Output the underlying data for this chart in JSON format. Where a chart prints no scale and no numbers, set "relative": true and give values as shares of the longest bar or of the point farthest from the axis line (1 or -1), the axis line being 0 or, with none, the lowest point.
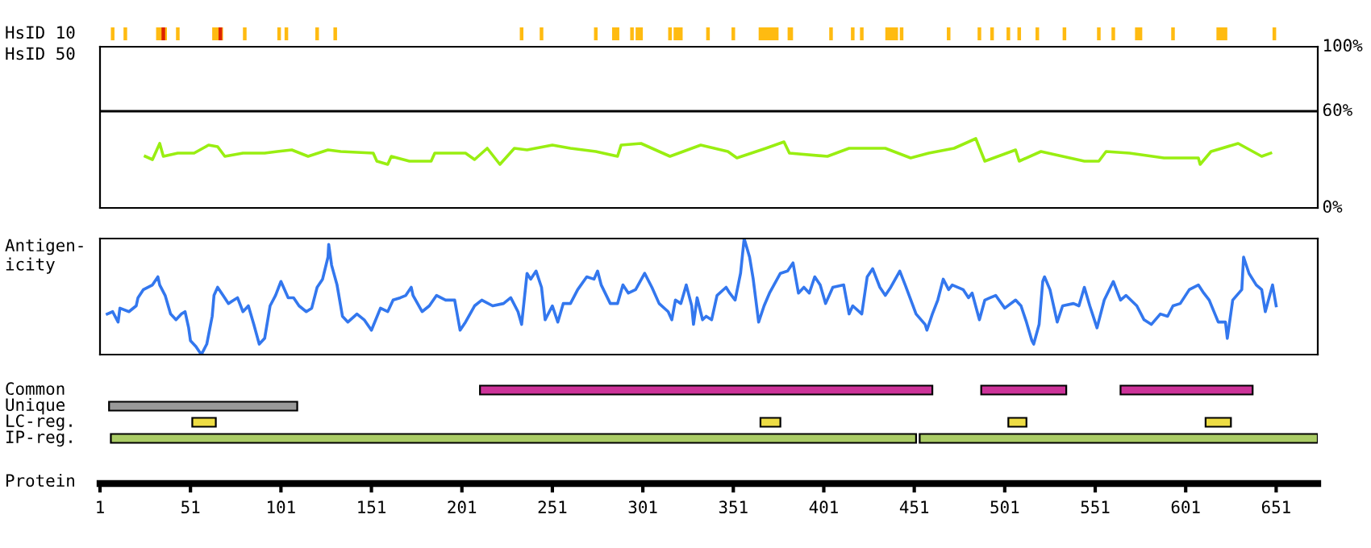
{
  "chart_data": [
    {
      "type": "bar",
      "orientation": "horizontal",
      "categories": [
        "HsID 10"
      ],
      "xlim": [
        1,
        674
      ],
      "tick_labels": false,
      "series": [
        {
          "color": "#ffbb11",
          "base": [
            7
          ],
          "values": [
            2
          ]
        },
        {
          "color": "#ffbb11",
          "base": [
            14
          ],
          "values": [
            2
          ]
        },
        {
          "color": "#ffbb11",
          "base": [
            32
          ],
          "values": [
            6
          ]
        },
        {
          "color": "#dd2200",
          "base": [
            35
          ],
          "values": [
            2
          ]
        },
        {
          "color": "#ffbb11",
          "base": [
            43
          ],
          "values": [
            2
          ]
        },
        {
          "color": "#ffbb11",
          "base": [
            63
          ],
          "values": [
            6
          ]
        },
        {
          "color": "#dd2200",
          "base": [
            66.5
          ],
          "values": [
            2
          ]
        },
        {
          "color": "#ffbb11",
          "base": [
            80
          ],
          "values": [
            2
          ]
        },
        {
          "color": "#ffbb11",
          "base": [
            99
          ],
          "values": [
            2
          ]
        },
        {
          "color": "#ffbb11",
          "base": [
            103
          ],
          "values": [
            2
          ]
        },
        {
          "color": "#ffbb11",
          "base": [
            120
          ],
          "values": [
            2
          ]
        },
        {
          "color": "#ffbb11",
          "base": [
            130
          ],
          "values": [
            2
          ]
        },
        {
          "color": "#ffbb11",
          "base": [
            233
          ],
          "values": [
            2
          ]
        },
        {
          "color": "#ffbb11",
          "base": [
            244
          ],
          "values": [
            2
          ]
        },
        {
          "color": "#ffbb11",
          "base": [
            274
          ],
          "values": [
            2
          ]
        },
        {
          "color": "#ffbb11",
          "base": [
            284
          ],
          "values": [
            4
          ]
        },
        {
          "color": "#ffbb11",
          "base": [
            294
          ],
          "values": [
            2
          ]
        },
        {
          "color": "#ffbb11",
          "base": [
            297
          ],
          "values": [
            4
          ]
        },
        {
          "color": "#ffbb11",
          "base": [
            315
          ],
          "values": [
            2
          ]
        },
        {
          "color": "#ffbb11",
          "base": [
            318
          ],
          "values": [
            5
          ]
        },
        {
          "color": "#ffbb11",
          "base": [
            336
          ],
          "values": [
            2
          ]
        },
        {
          "color": "#ffbb11",
          "base": [
            350
          ],
          "values": [
            2
          ]
        },
        {
          "color": "#ffbb11",
          "base": [
            365
          ],
          "values": [
            11
          ]
        },
        {
          "color": "#ffbb11",
          "base": [
            381
          ],
          "values": [
            3
          ]
        },
        {
          "color": "#ffbb11",
          "base": [
            404
          ],
          "values": [
            2
          ]
        },
        {
          "color": "#ffbb11",
          "base": [
            416
          ],
          "values": [
            2
          ]
        },
        {
          "color": "#ffbb11",
          "base": [
            421
          ],
          "values": [
            2
          ]
        },
        {
          "color": "#ffbb11",
          "base": [
            435
          ],
          "values": [
            7
          ]
        },
        {
          "color": "#ffbb11",
          "base": [
            443
          ],
          "values": [
            2
          ]
        },
        {
          "color": "#ffbb11",
          "base": [
            469
          ],
          "values": [
            2
          ]
        },
        {
          "color": "#ffbb11",
          "base": [
            486
          ],
          "values": [
            2
          ]
        },
        {
          "color": "#ffbb11",
          "base": [
            493
          ],
          "values": [
            2
          ]
        },
        {
          "color": "#ffbb11",
          "base": [
            502
          ],
          "values": [
            2
          ]
        },
        {
          "color": "#ffbb11",
          "base": [
            508
          ],
          "values": [
            2
          ]
        },
        {
          "color": "#ffbb11",
          "base": [
            518
          ],
          "values": [
            2
          ]
        },
        {
          "color": "#ffbb11",
          "base": [
            533
          ],
          "values": [
            2
          ]
        },
        {
          "color": "#ffbb11",
          "base": [
            552
          ],
          "values": [
            2
          ]
        },
        {
          "color": "#ffbb11",
          "base": [
            560
          ],
          "values": [
            2
          ]
        },
        {
          "color": "#ffbb11",
          "base": [
            573
          ],
          "values": [
            4
          ]
        },
        {
          "color": "#ffbb11",
          "base": [
            593
          ],
          "values": [
            2
          ]
        },
        {
          "color": "#ffbb11",
          "base": [
            618
          ],
          "values": [
            6
          ]
        },
        {
          "color": "#ffbb11",
          "base": [
            649
          ],
          "values": [
            2
          ]
        }
      ]
    },
    {
      "type": "line",
      "ylabel": "HsID 50",
      "xlim": [
        1,
        674
      ],
      "ylim": [
        0,
        100
      ],
      "yticks": [
        {
          "value": 0,
          "label": "0%"
        },
        {
          "value": 60,
          "label": "60%"
        },
        {
          "value": 100,
          "label": "100%"
        }
      ],
      "tick_labels": "y",
      "ref_lines": [
        {
          "axis": "y",
          "value": 60,
          "color": "#000000"
        }
      ],
      "series": [
        {
          "color": "#99ee11",
          "x": [
            26,
            30,
            34,
            36,
            44,
            53,
            61,
            66,
            70,
            80,
            92,
            99,
            107,
            116,
            127,
            134,
            152,
            154,
            160,
            162,
            172,
            184,
            186,
            203,
            208,
            215,
            222,
            230,
            237,
            251,
            261,
            275,
            287,
            289,
            300,
            316,
            333,
            348,
            353,
            369,
            379,
            382,
            403,
            415,
            435,
            449,
            459,
            473,
            485,
            490,
            507,
            509,
            521,
            545,
            553,
            557,
            570,
            589,
            608,
            609,
            615,
            630,
            643,
            648
          ],
          "values": [
            32,
            30,
            40,
            32,
            34,
            34,
            39,
            38,
            32,
            34,
            34,
            35,
            36,
            32,
            36,
            35,
            34,
            29,
            27,
            32,
            29,
            29,
            34,
            34,
            30,
            37,
            27,
            37,
            36,
            39,
            37,
            35,
            32,
            39,
            40,
            32,
            39,
            35,
            31,
            37,
            41,
            34,
            32,
            37,
            37,
            31,
            34,
            37,
            43,
            29,
            36,
            29,
            35,
            29,
            29,
            35,
            34,
            31,
            31,
            27,
            35,
            40,
            32,
            34
          ]
        }
      ]
    },
    {
      "type": "line",
      "ylabel": "Antigen-\nicity",
      "relative": true,
      "xlim": [
        1,
        674
      ],
      "tick_labels": false,
      "series": [
        {
          "color": "#3377ee",
          "x": [
            5,
            8,
            11,
            12,
            17,
            21,
            22,
            25,
            30,
            33,
            34,
            37,
            40,
            43,
            46,
            48,
            50,
            51,
            54,
            57,
            60,
            63,
            64,
            66,
            69,
            72,
            75,
            77,
            80,
            83,
            86,
            89,
            92,
            95,
            98,
            101,
            105,
            108,
            111,
            115,
            118,
            121,
            124,
            127,
            127.4,
            129,
            132,
            135,
            138,
            143,
            147,
            151,
            156,
            160,
            163,
            167,
            170,
            173,
            174,
            179,
            183,
            187,
            192,
            197,
            200,
            203,
            208,
            212,
            218,
            224,
            228,
            232,
            234,
            237,
            239,
            242,
            245,
            247,
            251,
            254,
            257,
            261,
            265,
            270,
            274,
            276,
            278,
            283,
            287,
            290,
            293,
            297,
            302,
            306,
            310,
            315,
            317,
            319,
            322,
            325,
            328,
            329,
            331,
            334,
            336,
            339,
            342,
            347,
            349,
            352,
            355,
            357,
            360,
            362,
            365,
            368,
            371,
            377,
            381,
            384,
            387,
            390,
            393,
            396,
            399,
            402,
            406,
            412,
            415,
            417,
            422,
            425,
            428,
            432,
            435,
            438,
            443,
            446,
            452,
            457,
            458,
            461,
            464,
            467,
            470,
            472,
            478,
            481,
            483,
            487,
            490,
            493,
            496,
            501,
            507,
            510,
            513,
            516,
            517,
            520,
            522,
            523,
            526,
            530,
            533,
            539,
            542,
            545,
            548,
            552,
            556,
            561,
            565,
            568,
            574,
            578,
            582,
            587,
            591,
            594,
            598,
            603,
            608,
            611,
            614,
            619,
            623,
            624,
            627,
            632,
            633,
            636,
            640,
            643,
            645,
            649,
            651
          ],
          "values": [
            0.35,
            0.37,
            0.28,
            0.4,
            0.37,
            0.42,
            0.49,
            0.56,
            0.6,
            0.67,
            0.6,
            0.51,
            0.35,
            0.3,
            0.35,
            0.37,
            0.23,
            0.12,
            0.07,
            0,
            0.09,
            0.33,
            0.51,
            0.58,
            0.51,
            0.44,
            0.47,
            0.49,
            0.37,
            0.42,
            0.26,
            0.09,
            0.14,
            0.42,
            0.51,
            0.63,
            0.49,
            0.49,
            0.42,
            0.37,
            0.4,
            0.58,
            0.65,
            0.84,
            0.95,
            0.77,
            0.6,
            0.33,
            0.28,
            0.35,
            0.3,
            0.21,
            0.4,
            0.37,
            0.47,
            0.49,
            0.51,
            0.58,
            0.51,
            0.37,
            0.42,
            0.51,
            0.47,
            0.47,
            0.21,
            0.28,
            0.42,
            0.47,
            0.42,
            0.44,
            0.49,
            0.37,
            0.26,
            0.7,
            0.65,
            0.72,
            0.58,
            0.3,
            0.42,
            0.28,
            0.44,
            0.44,
            0.56,
            0.67,
            0.65,
            0.72,
            0.6,
            0.44,
            0.44,
            0.6,
            0.53,
            0.56,
            0.7,
            0.58,
            0.44,
            0.37,
            0.3,
            0.47,
            0.44,
            0.6,
            0.42,
            0.26,
            0.49,
            0.3,
            0.33,
            0.3,
            0.51,
            0.58,
            0.53,
            0.47,
            0.7,
            1.0,
            0.84,
            0.65,
            0.28,
            0.42,
            0.53,
            0.7,
            0.72,
            0.79,
            0.53,
            0.58,
            0.53,
            0.67,
            0.6,
            0.44,
            0.58,
            0.6,
            0.35,
            0.42,
            0.35,
            0.67,
            0.74,
            0.58,
            0.51,
            0.58,
            0.72,
            0.6,
            0.35,
            0.26,
            0.21,
            0.35,
            0.47,
            0.65,
            0.56,
            0.6,
            0.56,
            0.49,
            0.53,
            0.3,
            0.47,
            0.49,
            0.51,
            0.4,
            0.47,
            0.42,
            0.28,
            0.12,
            0.09,
            0.26,
            0.63,
            0.67,
            0.56,
            0.28,
            0.42,
            0.44,
            0.42,
            0.58,
            0.42,
            0.23,
            0.47,
            0.63,
            0.47,
            0.51,
            0.42,
            0.3,
            0.26,
            0.35,
            0.33,
            0.42,
            0.44,
            0.56,
            0.6,
            0.53,
            0.47,
            0.28,
            0.28,
            0.14,
            0.47,
            0.56,
            0.84,
            0.7,
            0.6,
            0.56,
            0.37,
            0.6,
            0.42
          ]
        }
      ]
    },
    {
      "type": "bar",
      "orientation": "horizontal",
      "xlabel": "Protein",
      "categories": [
        "Common",
        "Unique",
        "LC-reg.",
        "IP-reg."
      ],
      "xlim": [
        1,
        674
      ],
      "xticks": [
        1,
        51,
        101,
        151,
        201,
        251,
        301,
        351,
        401,
        451,
        501,
        551,
        601,
        651
      ],
      "tick_labels": "x",
      "series": [
        {
          "colors": [
            "#cc3399",
            "#999999",
            "#eedd44",
            "#aacc66"
          ],
          "base": [
            211,
            6,
            52,
            7
          ],
          "values": [
            250,
            104,
            13,
            445
          ]
        },
        {
          "colors": [
            "#cc3399",
            null,
            "#eedd44",
            "#aacc66"
          ],
          "base": [
            488,
            null,
            366,
            454
          ],
          "values": [
            47,
            null,
            11,
            220
          ]
        },
        {
          "colors": [
            "#cc3399",
            null,
            "#eedd44",
            null
          ],
          "base": [
            565,
            null,
            503,
            null
          ],
          "values": [
            73,
            null,
            10,
            null
          ]
        },
        {
          "colors": [
            null,
            null,
            "#eedd44",
            null
          ],
          "base": [
            null,
            null,
            612,
            null
          ],
          "values": [
            null,
            null,
            14,
            null
          ]
        }
      ]
    }
  ]
}
